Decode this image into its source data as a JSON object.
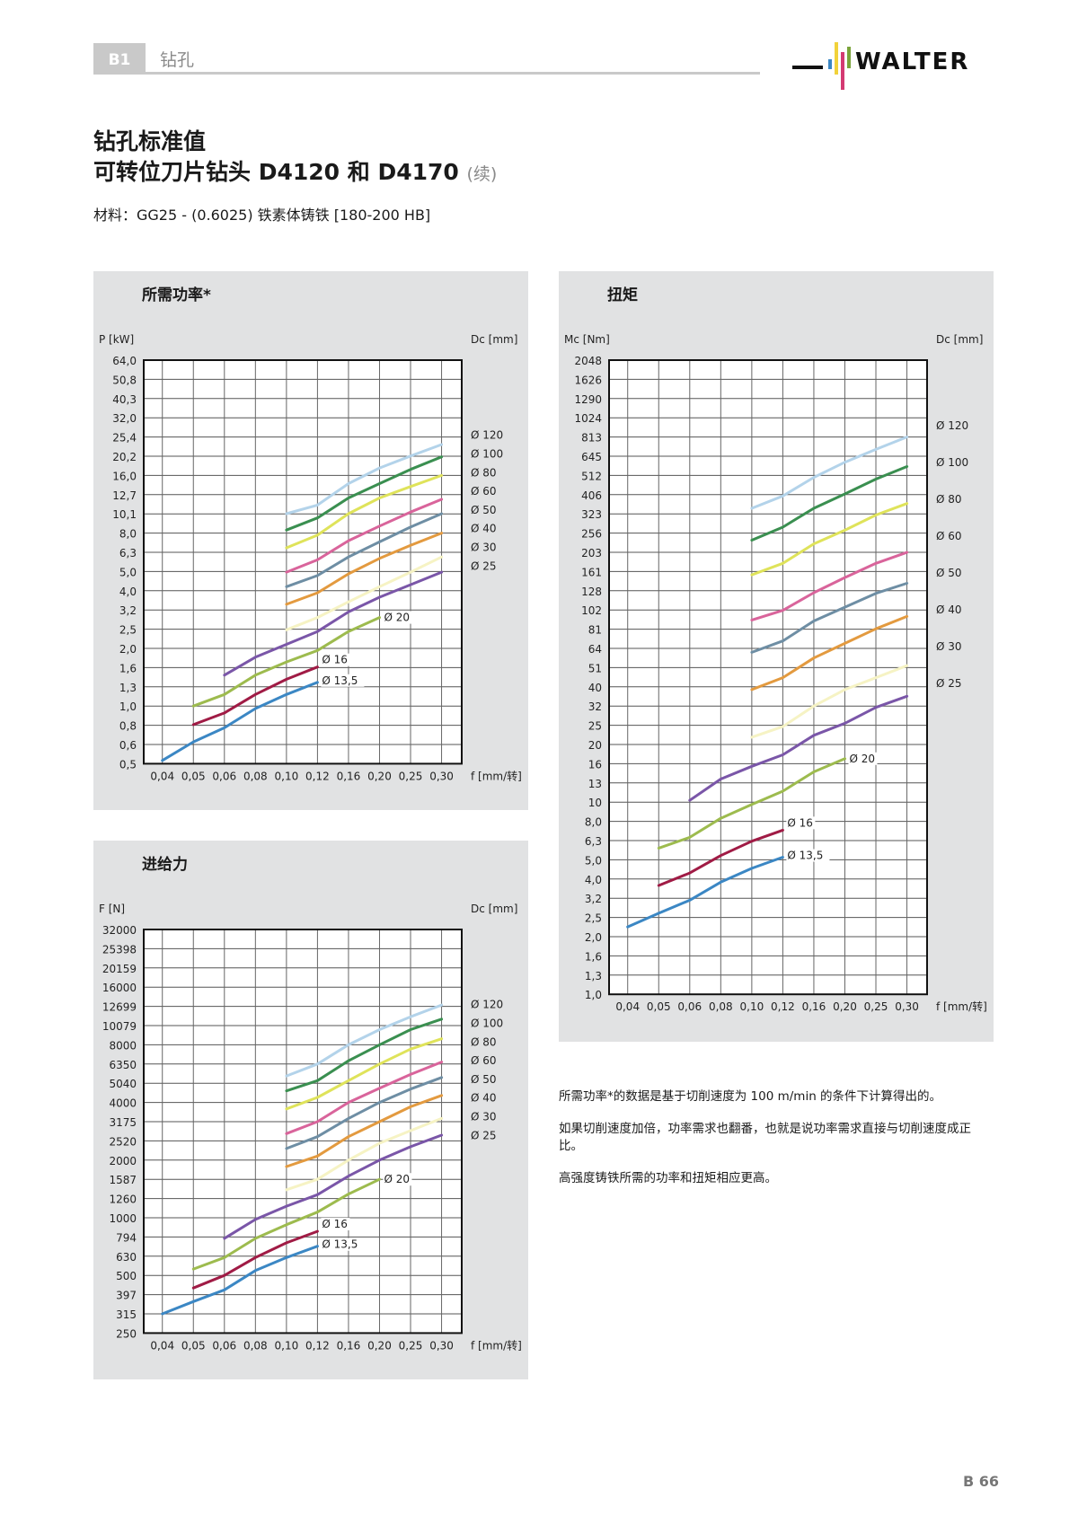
{
  "header": {
    "section_tab": "B1",
    "section_title": "钻孔",
    "logo_text": "WALTER"
  },
  "title": {
    "line1": "钻孔标准值",
    "line2": "可转位刀片钻头 D4120 和 D4170",
    "continued": "(续)"
  },
  "material": "材料：GG25 - (0.6025) 铁素体铸铁 [180-200 HB]",
  "notes": [
    "所需功率*的数据是基于切削速度为 100 m/min 的条件下计算得出的。",
    "如果切削速度加倍，功率需求也翻番，也就是说功率需求直接与切削速度成正比。",
    "高强度铸铁所需的功率和扭矩相应更高。"
  ],
  "page_number": "B 66",
  "series_colors": {
    "Ø 120": "#b3d3ea",
    "Ø 100": "#3a8f50",
    "Ø 80": "#dfe35a",
    "Ø 60": "#d9649b",
    "Ø 50": "#6e8ea4",
    "Ø 40": "#e39a3f",
    "Ø 30": "#f6f3c4",
    "Ø 25": "#7a56a8",
    "Ø 20": "#9dbb4e",
    "Ø 16": "#a01b45",
    "Ø 13,5": "#3b87c4"
  },
  "chart_data": [
    {
      "type": "line",
      "title": "所需功率*",
      "ylabel": "P [kW]",
      "xlabel": "f [mm/转]",
      "right_label": "Dc [mm]",
      "y_scale": "log",
      "yticks": [
        "64,0",
        "50,8",
        "40,3",
        "32,0",
        "25,4",
        "20,2",
        "16,0",
        "12,7",
        "10,1",
        "8,0",
        "6,3",
        "5,0",
        "4,0",
        "3,2",
        "2,5",
        "2,0",
        "1,6",
        "1,3",
        "1,0",
        "0,8",
        "0,6",
        "0,5"
      ],
      "ylim": [
        0.5,
        64.0
      ],
      "categories": [
        "0,04",
        "0,05",
        "0,06",
        "0,08",
        "0,10",
        "0,12",
        "0,16",
        "0,20",
        "0,25",
        "0,30"
      ],
      "grid": true,
      "legend_position": "right",
      "legend_right": [
        "Ø 120",
        "Ø 100",
        "Ø 80",
        "Ø 60",
        "Ø 50",
        "Ø 40",
        "Ø 30",
        "Ø 25"
      ],
      "inline_labels": [
        "Ø 20",
        "Ø 16",
        "Ø 13,5"
      ],
      "series": [
        {
          "name": "Ø 120",
          "start": 4,
          "values": [
            10.1,
            11.2,
            14.5,
            17.5,
            20.2,
            23.2
          ]
        },
        {
          "name": "Ø 100",
          "start": 4,
          "values": [
            8.3,
            9.6,
            12.2,
            14.5,
            17.2,
            20.0
          ]
        },
        {
          "name": "Ø 80",
          "start": 4,
          "values": [
            6.7,
            7.8,
            10.1,
            12.2,
            14.0,
            16.0
          ]
        },
        {
          "name": "Ø 60",
          "start": 4,
          "values": [
            5.0,
            5.8,
            7.3,
            8.7,
            10.3,
            12.0
          ]
        },
        {
          "name": "Ø 50",
          "start": 4,
          "values": [
            4.2,
            4.8,
            6.0,
            7.2,
            8.6,
            10.1
          ]
        },
        {
          "name": "Ø 40",
          "start": 4,
          "values": [
            3.4,
            3.9,
            4.9,
            5.9,
            6.9,
            8.0
          ]
        },
        {
          "name": "Ø 30",
          "start": 4,
          "values": [
            2.5,
            2.9,
            3.5,
            4.2,
            5.0,
            6.0
          ]
        },
        {
          "name": "Ø 25",
          "start": 2,
          "values": [
            1.45,
            1.8,
            2.1,
            2.45,
            3.1,
            3.7,
            4.3,
            5.0
          ]
        },
        {
          "name": "Ø 20",
          "start": 1,
          "values": [
            1.0,
            1.15,
            1.45,
            1.7,
            1.95,
            2.45,
            2.9
          ]
        },
        {
          "name": "Ø 16",
          "start": 1,
          "values": [
            0.8,
            0.92,
            1.15,
            1.38,
            1.6
          ]
        },
        {
          "name": "Ø 13,5",
          "start": 0,
          "values": [
            0.52,
            0.65,
            0.77,
            0.97,
            1.15,
            1.33
          ]
        }
      ]
    },
    {
      "type": "line",
      "title": "扭矩",
      "ylabel": "Mc [Nm]",
      "xlabel": "f [mm/转]",
      "right_label": "Dc [mm]",
      "y_scale": "log",
      "yticks": [
        "2048",
        "1626",
        "1290",
        "1024",
        "813",
        "645",
        "512",
        "406",
        "323",
        "256",
        "203",
        "161",
        "128",
        "102",
        "81",
        "64",
        "51",
        "40",
        "32",
        "25",
        "20",
        "16",
        "13",
        "10",
        "8,0",
        "6,3",
        "5,0",
        "4,0",
        "3,2",
        "2,5",
        "2,0",
        "1,6",
        "1,3",
        "1,0"
      ],
      "ylim": [
        1.0,
        2048
      ],
      "categories": [
        "0,04",
        "0,05",
        "0,06",
        "0,08",
        "0,10",
        "0,12",
        "0,16",
        "0,20",
        "0,25",
        "0,30"
      ],
      "grid": true,
      "legend_position": "right",
      "legend_right": [
        "Ø 120",
        "Ø 100",
        "Ø 80",
        "Ø 60",
        "Ø 50",
        "Ø 40",
        "Ø 30",
        "Ø 25"
      ],
      "inline_labels": [
        "Ø 20",
        "Ø 16",
        "Ø 13,5"
      ],
      "series": [
        {
          "name": "Ø 120",
          "start": 4,
          "values": [
            345,
            400,
            500,
            600,
            700,
            813
          ]
        },
        {
          "name": "Ø 100",
          "start": 4,
          "values": [
            235,
            275,
            345,
            410,
            490,
            570
          ]
        },
        {
          "name": "Ø 80",
          "start": 4,
          "values": [
            155,
            178,
            225,
            265,
            318,
            365
          ]
        },
        {
          "name": "Ø 60",
          "start": 4,
          "values": [
            90,
            101,
            125,
            150,
            178,
            203
          ]
        },
        {
          "name": "Ø 50",
          "start": 4,
          "values": [
            61,
            70,
            89,
            105,
            124,
            140
          ]
        },
        {
          "name": "Ø 40",
          "start": 4,
          "values": [
            39,
            45,
            57,
            68,
            81,
            94
          ]
        },
        {
          "name": "Ø 30",
          "start": 4,
          "values": [
            22,
            25,
            32,
            39,
            45,
            52
          ]
        },
        {
          "name": "Ø 25",
          "start": 2,
          "values": [
            10.3,
            13.3,
            15.5,
            17.8,
            22.5,
            26,
            31.5,
            36
          ]
        },
        {
          "name": "Ø 20",
          "start": 1,
          "values": [
            5.8,
            6.6,
            8.3,
            9.8,
            11.5,
            14.5,
            17
          ]
        },
        {
          "name": "Ø 16",
          "start": 1,
          "values": [
            3.7,
            4.3,
            5.3,
            6.3,
            7.2
          ]
        },
        {
          "name": "Ø 13,5",
          "start": 0,
          "values": [
            2.25,
            2.65,
            3.1,
            3.85,
            4.55,
            5.2
          ]
        }
      ]
    },
    {
      "type": "line",
      "title": "进给力",
      "ylabel": "F [N]",
      "xlabel": "f [mm/转]",
      "right_label": "Dc [mm]",
      "y_scale": "log",
      "yticks": [
        "32000",
        "25398",
        "20159",
        "16000",
        "12699",
        "10079",
        "8000",
        "6350",
        "5040",
        "4000",
        "3175",
        "2520",
        "2000",
        "1587",
        "1260",
        "1000",
        "794",
        "630",
        "500",
        "397",
        "315",
        "250"
      ],
      "ylim": [
        250,
        32000
      ],
      "categories": [
        "0,04",
        "0,05",
        "0,06",
        "0,08",
        "0,10",
        "0,12",
        "0,16",
        "0,20",
        "0,25",
        "0,30"
      ],
      "grid": true,
      "legend_position": "right",
      "legend_right": [
        "Ø 120",
        "Ø 100",
        "Ø 80",
        "Ø 60",
        "Ø 50",
        "Ø 40",
        "Ø 30",
        "Ø 25"
      ],
      "inline_labels": [
        "Ø 20",
        "Ø 16",
        "Ø 13,5"
      ],
      "series": [
        {
          "name": "Ø 120",
          "start": 4,
          "values": [
            5500,
            6350,
            8000,
            9600,
            11200,
            12900
          ]
        },
        {
          "name": "Ø 100",
          "start": 4,
          "values": [
            4600,
            5200,
            6600,
            8000,
            9600,
            10900
          ]
        },
        {
          "name": "Ø 80",
          "start": 4,
          "values": [
            3700,
            4250,
            5200,
            6350,
            7600,
            8600
          ]
        },
        {
          "name": "Ø 60",
          "start": 4,
          "values": [
            2750,
            3175,
            4000,
            4750,
            5600,
            6500
          ]
        },
        {
          "name": "Ø 50",
          "start": 4,
          "values": [
            2300,
            2650,
            3300,
            4000,
            4700,
            5400
          ]
        },
        {
          "name": "Ø 40",
          "start": 4,
          "values": [
            1850,
            2100,
            2650,
            3175,
            3800,
            4350
          ]
        },
        {
          "name": "Ø 30",
          "start": 4,
          "values": [
            1400,
            1587,
            2000,
            2450,
            2850,
            3300
          ]
        },
        {
          "name": "Ø 25",
          "start": 2,
          "values": [
            780,
            980,
            1150,
            1320,
            1650,
            2000,
            2350,
            2700
          ]
        },
        {
          "name": "Ø 20",
          "start": 1,
          "values": [
            540,
            620,
            780,
            920,
            1070,
            1330,
            1587
          ]
        },
        {
          "name": "Ø 16",
          "start": 1,
          "values": [
            430,
            500,
            620,
            740,
            850
          ]
        },
        {
          "name": "Ø 13,5",
          "start": 0,
          "values": [
            315,
            365,
            420,
            530,
            620,
            710
          ]
        }
      ]
    }
  ]
}
